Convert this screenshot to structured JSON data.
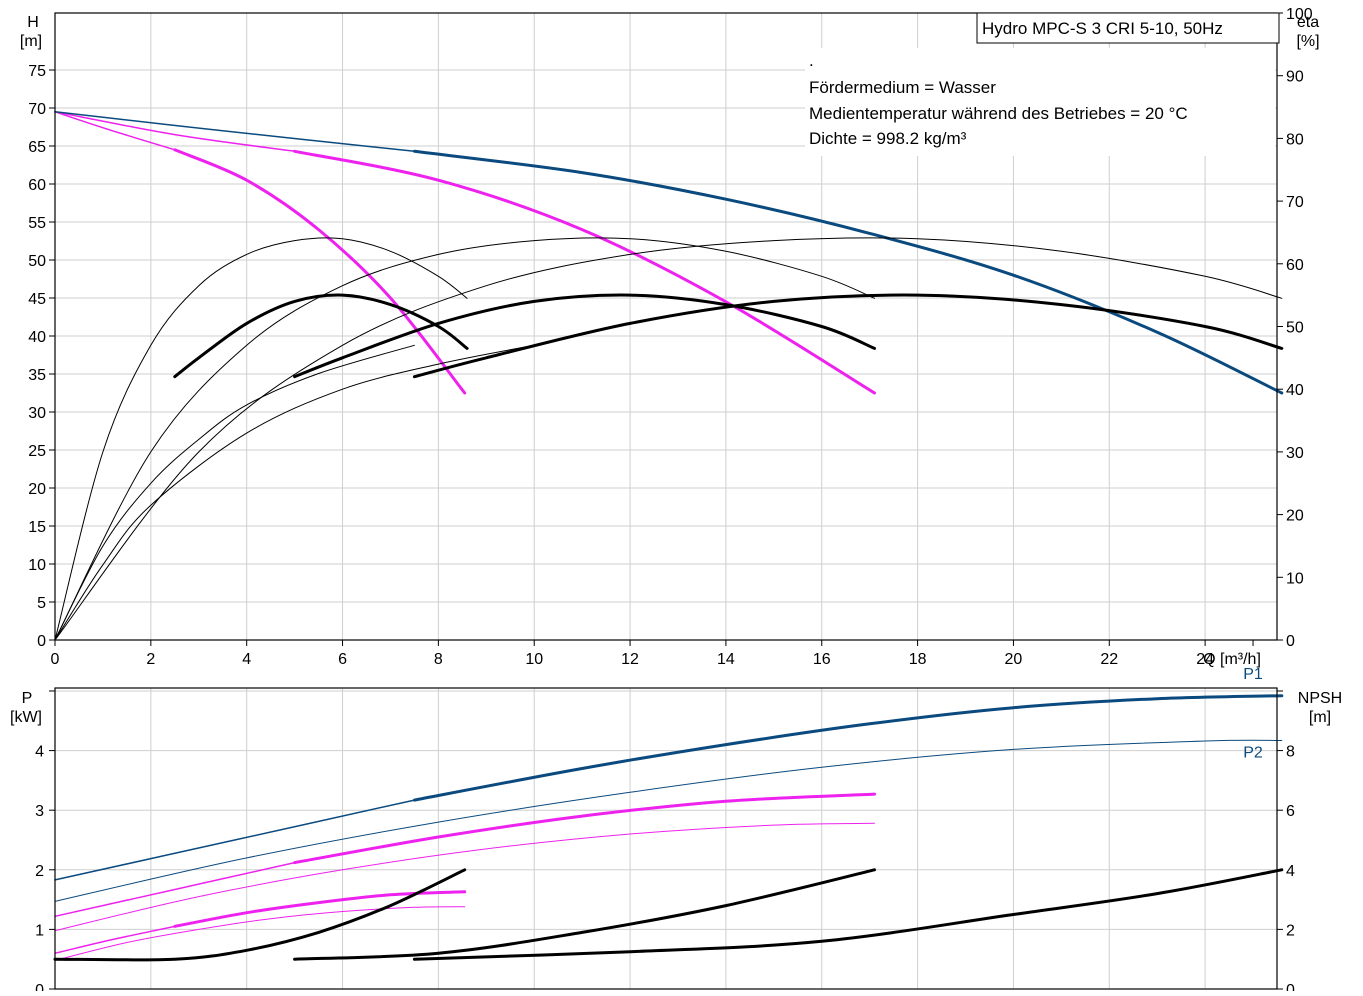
{
  "info_box": {
    "title": "Hydro MPC-S 3 CRI 5-10, 50Hz",
    "lines": [
      ".",
      "Fördermedium = Wasser",
      "Medientemperatur während des Betriebes = 20 °C",
      "Dichte = 998.2 kg/m³"
    ]
  },
  "colors": {
    "blue": "#0b4a7f",
    "magenta": "#ee22ee",
    "black": "#000000",
    "grid": "#cfcfcf"
  },
  "chart_data": [
    {
      "type": "line",
      "name": "head-efficiency",
      "x_axis": {
        "label": "Q [m³/h]",
        "range": [
          0,
          25.5
        ],
        "ticks": [
          0,
          2,
          4,
          6,
          8,
          10,
          12,
          14,
          16,
          18,
          20,
          22,
          24
        ]
      },
      "y_axis_left": {
        "label": [
          "H",
          "[m]"
        ],
        "range": [
          0,
          82.5
        ],
        "ticks": [
          0,
          5,
          10,
          15,
          20,
          25,
          30,
          35,
          40,
          45,
          50,
          55,
          60,
          65,
          70,
          75
        ]
      },
      "y_axis_right": {
        "label": [
          "eta",
          "[%]"
        ],
        "range": [
          0,
          100
        ],
        "ticks": [
          0,
          10,
          20,
          30,
          40,
          50,
          60,
          70,
          80,
          90,
          100
        ]
      },
      "grid": true,
      "series": [
        {
          "axis": "left",
          "color": "magenta",
          "width": 1.5,
          "points": [
            [
              0,
              69.5
            ],
            [
              1.2,
              67
            ],
            [
              2.5,
              64.5
            ]
          ]
        },
        {
          "axis": "left",
          "color": "magenta",
          "width": 3,
          "points": [
            [
              2.5,
              64.5
            ],
            [
              4,
              60.5
            ],
            [
              5.5,
              54
            ],
            [
              7,
              45
            ],
            [
              8.55,
              32.5
            ]
          ]
        },
        {
          "axis": "left",
          "color": "magenta",
          "width": 1.5,
          "points": [
            [
              0,
              69.5
            ],
            [
              2.5,
              66.5
            ],
            [
              5,
              64.3
            ]
          ]
        },
        {
          "axis": "left",
          "color": "magenta",
          "width": 3,
          "points": [
            [
              5,
              64.3
            ],
            [
              8,
              60.5
            ],
            [
              11,
              54
            ],
            [
              14,
              44.5
            ],
            [
              17.1,
              32.5
            ]
          ]
        },
        {
          "axis": "left",
          "color": "blue",
          "width": 1.5,
          "points": [
            [
              0,
              69.5
            ],
            [
              3.5,
              67
            ],
            [
              7.5,
              64.3
            ]
          ]
        },
        {
          "axis": "left",
          "color": "blue",
          "width": 3,
          "points": [
            [
              7.5,
              64.3
            ],
            [
              11,
              61.5
            ],
            [
              14,
              58
            ],
            [
              17,
              53.5
            ],
            [
              20,
              48
            ],
            [
              23,
              40.5
            ],
            [
              25.6,
              32.5
            ]
          ]
        },
        {
          "axis": "right",
          "color": "black",
          "width": 1,
          "points": [
            [
              0,
              0
            ],
            [
              1,
              30
            ],
            [
              2,
              47
            ],
            [
              3,
              56.5
            ],
            [
              4,
              61.5
            ],
            [
              5,
              63.7
            ],
            [
              6,
              64
            ],
            [
              7,
              62
            ],
            [
              8,
              58
            ],
            [
              8.6,
              54.5
            ]
          ]
        },
        {
          "axis": "right",
          "color": "black",
          "width": 3,
          "points": [
            [
              2.5,
              42
            ],
            [
              3,
              45
            ],
            [
              4,
              50.5
            ],
            [
              5,
              54
            ],
            [
              6,
              55
            ],
            [
              7,
              53.5
            ],
            [
              8,
              50
            ],
            [
              8.6,
              46.5
            ]
          ]
        },
        {
          "axis": "right",
          "color": "black",
          "width": 1,
          "points": [
            [
              0,
              0
            ],
            [
              2,
              30
            ],
            [
              4,
              47
            ],
            [
              6,
              56.5
            ],
            [
              8,
              61.5
            ],
            [
              10,
              63.7
            ],
            [
              12,
              64
            ],
            [
              14,
              62
            ],
            [
              16,
              58
            ],
            [
              17.1,
              54.5
            ]
          ]
        },
        {
          "axis": "right",
          "color": "black",
          "width": 3,
          "points": [
            [
              5,
              42
            ],
            [
              6,
              45
            ],
            [
              8,
              50.5
            ],
            [
              10,
              54
            ],
            [
              12,
              55
            ],
            [
              14,
              53.5
            ],
            [
              16,
              50
            ],
            [
              17.1,
              46.5
            ]
          ]
        },
        {
          "axis": "right",
          "color": "black",
          "width": 1,
          "points": [
            [
              0,
              0
            ],
            [
              3,
              30
            ],
            [
              6,
              47
            ],
            [
              9,
              56.5
            ],
            [
              12,
              61.5
            ],
            [
              15,
              63.7
            ],
            [
              18,
              64
            ],
            [
              21,
              62
            ],
            [
              24,
              58
            ],
            [
              25.6,
              54.5
            ]
          ]
        },
        {
          "axis": "right",
          "color": "black",
          "width": 3,
          "points": [
            [
              7.5,
              42
            ],
            [
              9,
              45
            ],
            [
              12,
              50.5
            ],
            [
              15,
              54
            ],
            [
              18,
              55
            ],
            [
              21,
              53.5
            ],
            [
              24,
              50
            ],
            [
              25.6,
              46.5
            ]
          ]
        },
        {
          "axis": "right",
          "color": "black",
          "width": 1,
          "points": [
            [
              0,
              0
            ],
            [
              1,
              15
            ],
            [
              2,
              25
            ],
            [
              3,
              32
            ],
            [
              4,
              37.5
            ],
            [
              5.5,
              42.5
            ],
            [
              7.5,
              47
            ]
          ]
        },
        {
          "axis": "right",
          "color": "black",
          "width": 1,
          "points": [
            [
              0,
              0
            ],
            [
              1,
              12
            ],
            [
              2,
              21.5
            ],
            [
              4,
              33
            ],
            [
              6,
              40
            ],
            [
              8,
              44
            ],
            [
              10,
              47
            ]
          ]
        }
      ]
    },
    {
      "type": "line",
      "name": "power-npsh",
      "x_axis": {
        "range": [
          0,
          25.5
        ]
      },
      "y_axis_left": {
        "label": [
          "P",
          "[kW]"
        ],
        "range": [
          0,
          5.05
        ],
        "ticks": [
          0,
          1,
          2,
          3,
          4,
          5
        ],
        "tick_labels": [
          "0",
          "1",
          "2",
          "3",
          "4",
          ""
        ]
      },
      "y_axis_right": {
        "label": [
          "NPSH",
          "[m]"
        ],
        "range": [
          0,
          10.1
        ],
        "ticks": [
          0,
          2,
          4,
          6,
          8,
          10
        ],
        "tick_labels": [
          "0",
          "2",
          "4",
          "6",
          "8",
          ""
        ]
      },
      "grid": true,
      "series": [
        {
          "axis": "left",
          "name": "P1",
          "color": "blue",
          "width": 1.5,
          "points": [
            [
              0,
              1.83
            ],
            [
              3.75,
              2.5
            ],
            [
              7.5,
              3.17
            ]
          ]
        },
        {
          "axis": "left",
          "name": "P1",
          "color": "blue",
          "width": 3,
          "points": [
            [
              7.5,
              3.17
            ],
            [
              11,
              3.7
            ],
            [
              14,
              4.1
            ],
            [
              17,
              4.45
            ],
            [
              20,
              4.72
            ],
            [
              23,
              4.87
            ],
            [
              25.6,
              4.92
            ]
          ]
        },
        {
          "axis": "left",
          "name": "P2",
          "color": "blue",
          "width": 1,
          "points": [
            [
              0,
              1.47
            ],
            [
              4,
              2.2
            ],
            [
              8,
              2.8
            ],
            [
              12,
              3.3
            ],
            [
              16,
              3.72
            ],
            [
              20,
              4.02
            ],
            [
              24,
              4.16
            ],
            [
              25.6,
              4.17
            ]
          ]
        },
        {
          "axis": "left",
          "color": "magenta",
          "width": 1.5,
          "points": [
            [
              0,
              1.22
            ],
            [
              2.5,
              1.67
            ],
            [
              5,
              2.12
            ]
          ]
        },
        {
          "axis": "left",
          "color": "magenta",
          "width": 3,
          "points": [
            [
              5,
              2.12
            ],
            [
              8,
              2.55
            ],
            [
              11,
              2.9
            ],
            [
              14,
              3.15
            ],
            [
              17.1,
              3.27
            ]
          ]
        },
        {
          "axis": "left",
          "color": "magenta",
          "width": 1,
          "points": [
            [
              0,
              0.98
            ],
            [
              3,
              1.55
            ],
            [
              6,
              2.0
            ],
            [
              9,
              2.35
            ],
            [
              12,
              2.6
            ],
            [
              15,
              2.75
            ],
            [
              17.1,
              2.78
            ]
          ]
        },
        {
          "axis": "left",
          "color": "magenta",
          "width": 1.5,
          "points": [
            [
              0,
              0.6
            ],
            [
              1.2,
              0.83
            ],
            [
              2.5,
              1.05
            ]
          ]
        },
        {
          "axis": "left",
          "color": "magenta",
          "width": 3,
          "points": [
            [
              2.5,
              1.05
            ],
            [
              4,
              1.28
            ],
            [
              5.5,
              1.45
            ],
            [
              7,
              1.58
            ],
            [
              8.55,
              1.63
            ]
          ]
        },
        {
          "axis": "left",
          "color": "magenta",
          "width": 1,
          "points": [
            [
              0,
              0.48
            ],
            [
              1.5,
              0.78
            ],
            [
              3,
              1.0
            ],
            [
              4.5,
              1.18
            ],
            [
              6,
              1.3
            ],
            [
              7.5,
              1.37
            ],
            [
              8.55,
              1.38
            ]
          ]
        },
        {
          "axis": "right",
          "color": "black",
          "width": 3,
          "points": [
            [
              0,
              1.0
            ],
            [
              2.5,
              1.0
            ],
            [
              4,
              1.3
            ],
            [
              5.5,
              1.9
            ],
            [
              7,
              2.8
            ],
            [
              8.55,
              4.0
            ]
          ]
        },
        {
          "axis": "right",
          "color": "black",
          "width": 3,
          "points": [
            [
              5,
              1.0
            ],
            [
              8,
              1.2
            ],
            [
              11,
              1.9
            ],
            [
              14,
              2.8
            ],
            [
              17.1,
              4.0
            ]
          ]
        },
        {
          "axis": "right",
          "color": "black",
          "width": 3,
          "points": [
            [
              7.5,
              1.0
            ],
            [
              12,
              1.25
            ],
            [
              16,
              1.6
            ],
            [
              20,
              2.5
            ],
            [
              23,
              3.2
            ],
            [
              25.6,
              4.0
            ]
          ]
        }
      ],
      "annotations": [
        {
          "text": "P1",
          "at": [
            25,
            5.2
          ]
        },
        {
          "text": "P2",
          "at": [
            25,
            3.88
          ]
        }
      ]
    }
  ]
}
